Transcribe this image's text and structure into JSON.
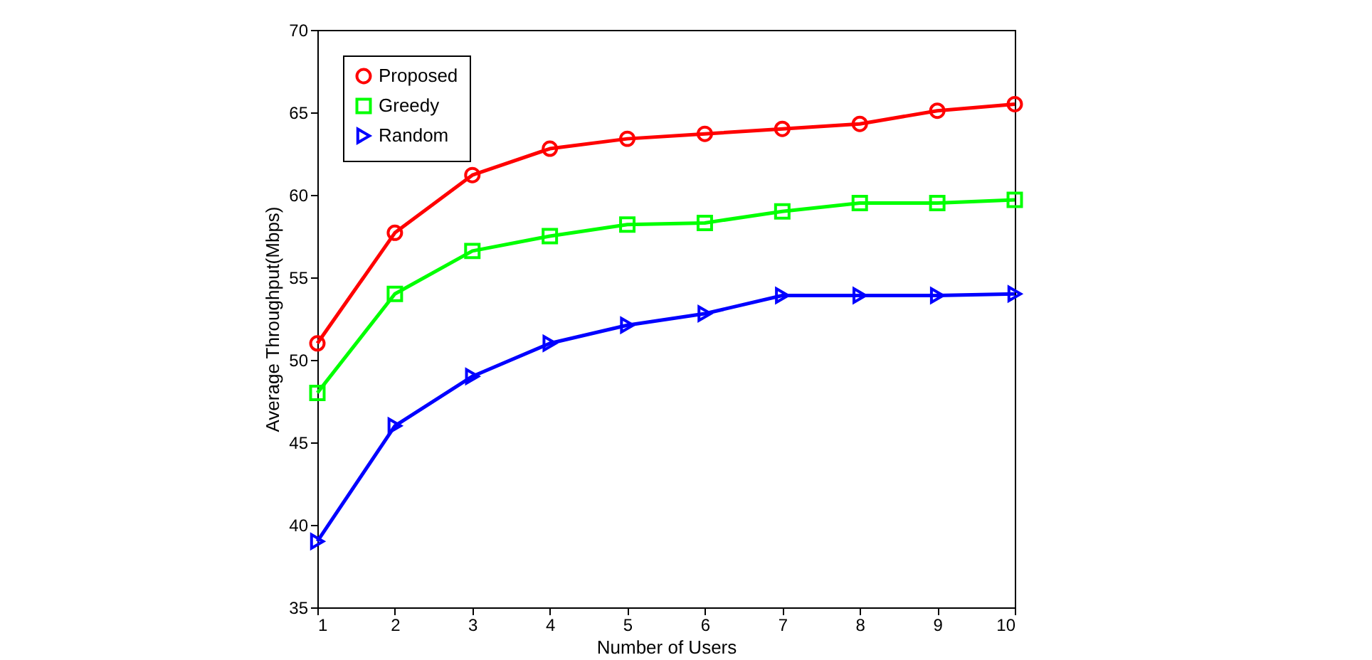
{
  "chart_data": {
    "type": "line",
    "xlabel": "Number of Users",
    "ylabel": "Average Throughput(Mbps)",
    "x": [
      1,
      2,
      3,
      4,
      5,
      6,
      7,
      8,
      9,
      10
    ],
    "xlim": [
      1,
      10
    ],
    "xticks": [
      1,
      2,
      3,
      4,
      5,
      6,
      7,
      8,
      9,
      10
    ],
    "ylim": [
      35,
      70
    ],
    "yticks": [
      35,
      40,
      45,
      50,
      55,
      60,
      65,
      70
    ],
    "grid": false,
    "legend": "top left",
    "line_style": "solid",
    "series": [
      {
        "name": "Proposed",
        "color": "#ff0000",
        "marker": "circle",
        "values": [
          51,
          57.7,
          61.2,
          62.8,
          63.4,
          63.7,
          64,
          64.3,
          65.1,
          65.5
        ]
      },
      {
        "name": "Greedy",
        "color": "#00ff00",
        "marker": "square",
        "values": [
          48,
          54,
          56.6,
          57.5,
          58.2,
          58.3,
          59,
          59.5,
          59.5,
          59.7
        ]
      },
      {
        "name": "Random",
        "color": "#0000ff",
        "marker": "triangle-right",
        "values": [
          39,
          46,
          49,
          51,
          52.1,
          52.8,
          53.9,
          53.9,
          53.9,
          54
        ]
      }
    ]
  }
}
